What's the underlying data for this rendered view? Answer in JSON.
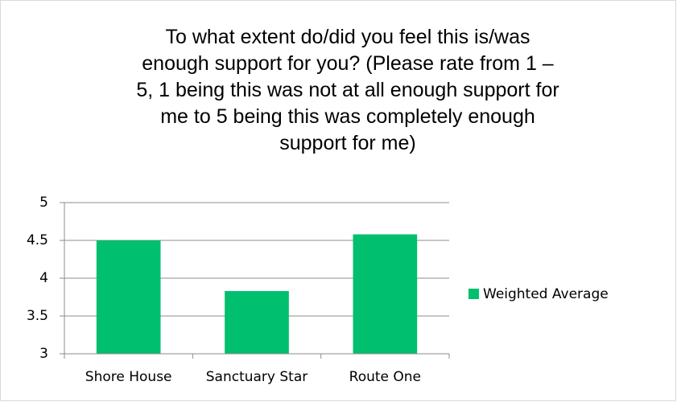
{
  "chart_data": {
    "type": "bar",
    "title": "To what extent do/did you feel this is/was enough support for you? (Please rate from 1 – 5, 1 being this was not at all enough support for me to 5 being this was completely enough support for me)",
    "categories": [
      "Shore House",
      "Sanctuary Star",
      "Route One"
    ],
    "series": [
      {
        "name": "Weighted Average",
        "color": "#00bf6f",
        "values": [
          4.5,
          3.83,
          4.58
        ]
      }
    ],
    "ylim": [
      3,
      5
    ],
    "yticks": [
      3,
      3.5,
      4,
      4.5,
      5
    ],
    "grid": true,
    "legend": "right"
  }
}
